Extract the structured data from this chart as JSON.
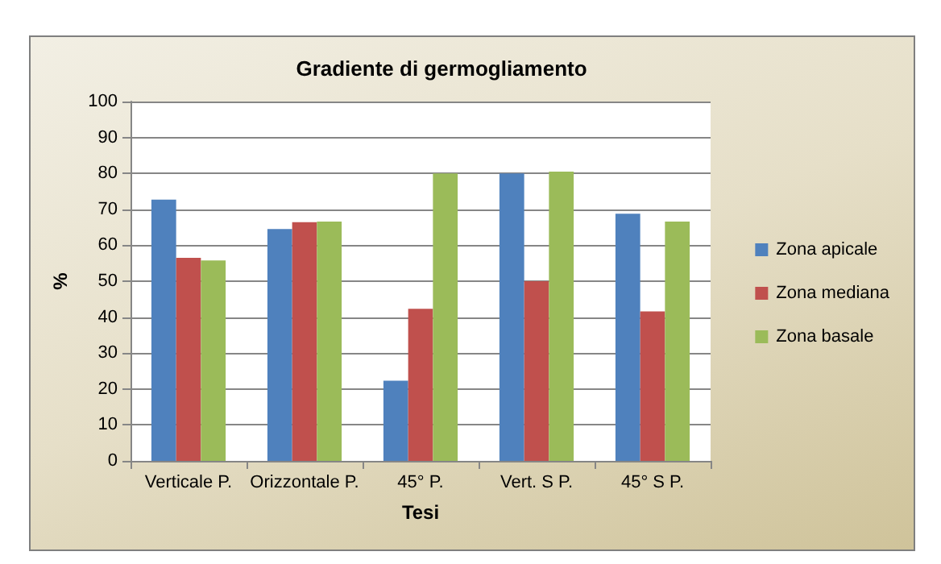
{
  "chart_data": {
    "type": "bar",
    "title": "Gradiente di germogliamento",
    "xlabel": "Tesi",
    "ylabel": "%",
    "categories": [
      "Verticale P.",
      "Orizzontale P.",
      "45° P.",
      "Vert. S P.",
      "45° S P."
    ],
    "series": [
      {
        "name": "Zona apicale",
        "color": "#4f81bd",
        "values": [
          72.7,
          64.5,
          22.3,
          80,
          68.8
        ]
      },
      {
        "name": "Zona mediana",
        "color": "#c0504d",
        "values": [
          56.5,
          66.4,
          42.3,
          50,
          41.6
        ]
      },
      {
        "name": "Zona basale",
        "color": "#9bbb59",
        "values": [
          55.8,
          66.6,
          80,
          80.5,
          66.6
        ]
      }
    ],
    "ylim": [
      0,
      100
    ],
    "yticks": [
      0,
      10,
      20,
      30,
      40,
      50,
      60,
      70,
      80,
      90,
      100
    ],
    "grid": "y",
    "legend": "right"
  }
}
